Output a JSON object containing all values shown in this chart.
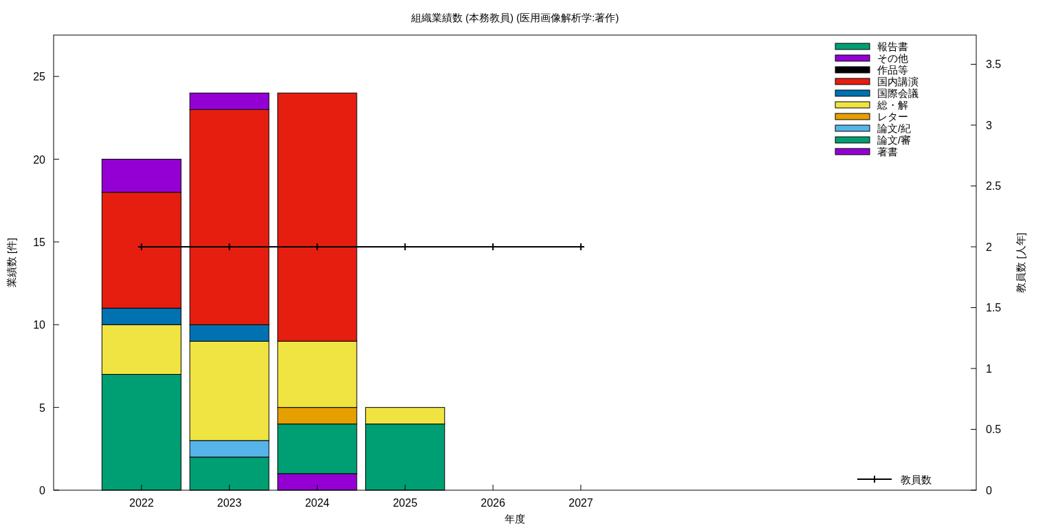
{
  "chart_data": {
    "type": "bar",
    "stacked": true,
    "title": "組織業績数 (本務教員) (医用画像解析学:著作)",
    "xlabel": "年度",
    "ylabel": "業績数 [件]",
    "y2label": "教員数 [人年]",
    "legend": "right",
    "x": [
      2022,
      2023,
      2024,
      2025,
      2026,
      2027
    ],
    "xlim": [
      2021,
      2031.5
    ],
    "xticks": [
      2022,
      2023,
      2024,
      2025,
      2026,
      2027
    ],
    "ylim": [
      0,
      27.5
    ],
    "yticks": [
      0,
      5,
      10,
      15,
      20,
      25
    ],
    "y2lim": [
      0,
      3.74
    ],
    "y2ticks": [
      0,
      0.5,
      1,
      1.5,
      2,
      2.5,
      3,
      3.5
    ],
    "series": [
      {
        "name": "著書",
        "color": "#9400d3",
        "values": [
          0,
          0,
          1,
          0,
          0,
          0
        ]
      },
      {
        "name": "論文/審",
        "color": "#009e73",
        "values": [
          7,
          2,
          3,
          4,
          0,
          0
        ]
      },
      {
        "name": "論文/紀",
        "color": "#56b4e9",
        "values": [
          0,
          1,
          0,
          0,
          0,
          0
        ]
      },
      {
        "name": "レター",
        "color": "#e69f00",
        "values": [
          0,
          0,
          1,
          0,
          0,
          0
        ]
      },
      {
        "name": "総・解",
        "color": "#f0e442",
        "values": [
          3,
          6,
          4,
          1,
          0,
          0
        ]
      },
      {
        "name": "国際会議",
        "color": "#0072b2",
        "values": [
          1,
          1,
          0,
          0,
          0,
          0
        ]
      },
      {
        "name": "国内講演",
        "color": "#e51e10",
        "values": [
          7,
          13,
          15,
          0,
          0,
          0
        ]
      },
      {
        "name": "作品等",
        "color": "#000000",
        "values": [
          0,
          0,
          0,
          0,
          0,
          0
        ]
      },
      {
        "name": "その他",
        "color": "#9400d3",
        "values": [
          2,
          1,
          0,
          0,
          0,
          0
        ]
      },
      {
        "name": "報告書",
        "color": "#009e73",
        "values": [
          0,
          0,
          0,
          0,
          0,
          0
        ]
      },
      {
        "name": "教員数",
        "type": "line",
        "axis": "y2",
        "color": "#000000",
        "marker": "cross",
        "values": [
          2,
          2,
          2,
          2,
          2,
          2
        ]
      }
    ]
  }
}
